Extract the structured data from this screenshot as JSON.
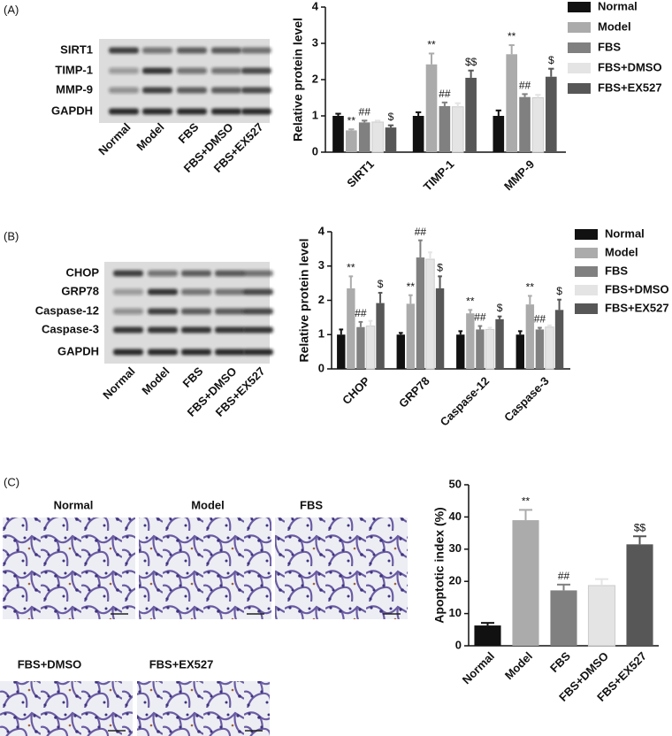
{
  "panel_labels": [
    "(A)",
    "(B)",
    "(C)"
  ],
  "blots": [
    {
      "rows": [
        "SIRT1",
        "TIMP-1",
        "MMP-9",
        "GAPDH"
      ],
      "lanes": [
        "Normal",
        "Model",
        "FBS",
        "FBS+DMSO",
        "FBS+EX527"
      ]
    },
    {
      "rows": [
        "CHOP",
        "GRP78",
        "Caspase-12",
        "Caspase-3",
        "GAPDH"
      ],
      "lanes": [
        "Normal",
        "Model",
        "FBS",
        "FBS+DMSO",
        "FBS+EX527"
      ]
    }
  ],
  "micrographs": {
    "titles": [
      "Normal",
      "Model",
      "FBS",
      "FBS+DMSO",
      "FBS+EX527"
    ]
  },
  "chart_data": [
    {
      "type": "bar",
      "y_label": "Relative protein level",
      "categories": [
        "SIRT1",
        "TIMP-1",
        "MMP-9"
      ],
      "ylim": [
        0,
        4
      ],
      "yticks": [
        0,
        1,
        2,
        3,
        4
      ],
      "legend": "right",
      "series": [
        {
          "name": "Normal",
          "color": "#111111",
          "values": [
            1.0,
            1.0,
            1.0
          ],
          "errors": [
            0.06,
            0.1,
            0.15
          ],
          "significance": [
            null,
            null,
            null
          ]
        },
        {
          "name": "Model",
          "color": "#ababab",
          "values": [
            0.6,
            2.42,
            2.7
          ],
          "errors": [
            0.03,
            0.3,
            0.25
          ],
          "significance": [
            "**",
            "**",
            "**"
          ]
        },
        {
          "name": "FBS",
          "color": "#808080",
          "values": [
            0.82,
            1.27,
            1.52
          ],
          "errors": [
            0.05,
            0.1,
            0.08
          ],
          "significance": [
            "##",
            "##",
            "##"
          ]
        },
        {
          "name": "FBS+DMSO",
          "color": "#e4e4e4",
          "values": [
            0.83,
            1.25,
            1.5
          ],
          "errors": [
            0.04,
            0.1,
            0.08
          ],
          "significance": [
            null,
            null,
            null
          ]
        },
        {
          "name": "FBS+EX527",
          "color": "#575757",
          "values": [
            0.68,
            2.05,
            2.08
          ],
          "errors": [
            0.06,
            0.2,
            0.22
          ],
          "significance": [
            "$",
            "$$",
            "$"
          ]
        }
      ]
    },
    {
      "type": "bar",
      "y_label": "Relative protein level",
      "categories": [
        "CHOP",
        "GRP78",
        "Caspase-12",
        "Caspase-3"
      ],
      "ylim": [
        0,
        4
      ],
      "yticks": [
        0,
        1,
        2,
        3,
        4
      ],
      "legend": "right",
      "series": [
        {
          "name": "Normal",
          "color": "#111111",
          "values": [
            1.0,
            1.0,
            1.0,
            1.0
          ],
          "errors": [
            0.15,
            0.05,
            0.1,
            0.1
          ],
          "significance": [
            null,
            null,
            null,
            null
          ]
        },
        {
          "name": "Model",
          "color": "#ababab",
          "values": [
            2.35,
            1.9,
            1.62,
            1.88
          ],
          "errors": [
            0.35,
            0.25,
            0.1,
            0.25
          ],
          "significance": [
            "**",
            "**",
            "**",
            "**"
          ]
        },
        {
          "name": "FBS",
          "color": "#808080",
          "values": [
            1.22,
            3.25,
            1.15,
            1.15
          ],
          "errors": [
            0.15,
            0.5,
            0.1,
            0.05
          ],
          "significance": [
            "##",
            "##",
            "##",
            "##"
          ]
        },
        {
          "name": "FBS+DMSO",
          "color": "#e4e4e4",
          "values": [
            1.25,
            3.2,
            1.15,
            1.22
          ],
          "errors": [
            0.15,
            0.2,
            0.05,
            0.05
          ],
          "significance": [
            null,
            null,
            null,
            null
          ]
        },
        {
          "name": "FBS+EX527",
          "color": "#575757",
          "values": [
            1.92,
            2.35,
            1.45,
            1.72
          ],
          "errors": [
            0.3,
            0.35,
            0.08,
            0.3
          ],
          "significance": [
            "$",
            "$",
            "$",
            "$"
          ]
        }
      ]
    },
    {
      "type": "bar",
      "y_label": "Apoptotic index (%)",
      "categories": [
        "Normal",
        "Model",
        "FBS",
        "FBS+DMSO",
        "FBS+EX527"
      ],
      "ylim": [
        0,
        50
      ],
      "yticks": [
        0,
        10,
        20,
        30,
        40,
        50
      ],
      "values": [
        6.3,
        39,
        17.2,
        18.7,
        31.5
      ],
      "errors": [
        0.8,
        3.2,
        1.8,
        2,
        2.5
      ],
      "colors": [
        "#111111",
        "#ababab",
        "#808080",
        "#e4e4e4",
        "#575757"
      ],
      "significance": [
        null,
        "**",
        "##",
        null,
        "$$"
      ]
    }
  ]
}
